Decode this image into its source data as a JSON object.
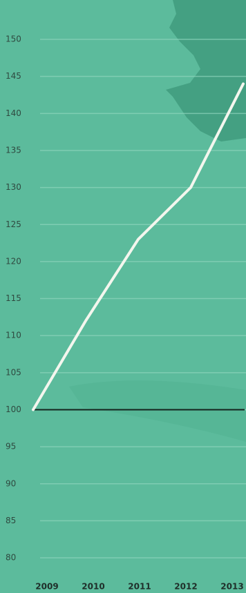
{
  "chart_data": {
    "type": "line",
    "categories": [
      "2009",
      "2010",
      "2011",
      "2012",
      "2013"
    ],
    "series": [
      {
        "name": null,
        "color": "#f4f6ee",
        "values": [
          100,
          112,
          123,
          130,
          144
        ]
      }
    ],
    "baseline": 100,
    "ylim": [
      78,
      155
    ],
    "yticks": [
      80,
      85,
      90,
      95,
      100,
      105,
      110,
      115,
      120,
      125,
      130,
      135,
      140,
      145,
      150
    ],
    "grid": true
  }
}
